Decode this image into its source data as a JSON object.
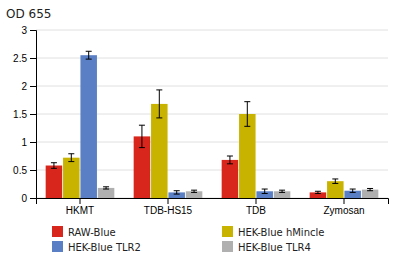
{
  "chart_data": {
    "type": "bar",
    "title": "OD 655",
    "categories": [
      "HKMT",
      "TDB-HS15",
      "TDB",
      "Zymosan"
    ],
    "series": [
      {
        "name": "RAW-Blue",
        "color": "#d9261c",
        "values": [
          0.58,
          1.1,
          0.68,
          0.1
        ],
        "errors": [
          0.05,
          0.2,
          0.07,
          0.02
        ]
      },
      {
        "name": "HEK-Blue hMincle",
        "color": "#c8b400",
        "values": [
          0.72,
          1.68,
          1.5,
          0.3
        ],
        "errors": [
          0.07,
          0.25,
          0.22,
          0.04
        ]
      },
      {
        "name": "HEK-Blue TLR2",
        "color": "#5b7fc5",
        "values": [
          2.55,
          0.1,
          0.12,
          0.13
        ],
        "errors": [
          0.07,
          0.03,
          0.04,
          0.03
        ]
      },
      {
        "name": "HEK-Blue TLR4",
        "color": "#b0b0b0",
        "values": [
          0.18,
          0.12,
          0.12,
          0.15
        ],
        "errors": [
          0.02,
          0.02,
          0.02,
          0.02
        ]
      }
    ],
    "ylim": [
      0,
      3
    ],
    "yticks": [
      0,
      0.5,
      1,
      1.5,
      2,
      2.5,
      3
    ],
    "grid": true,
    "legend": "bottom"
  }
}
